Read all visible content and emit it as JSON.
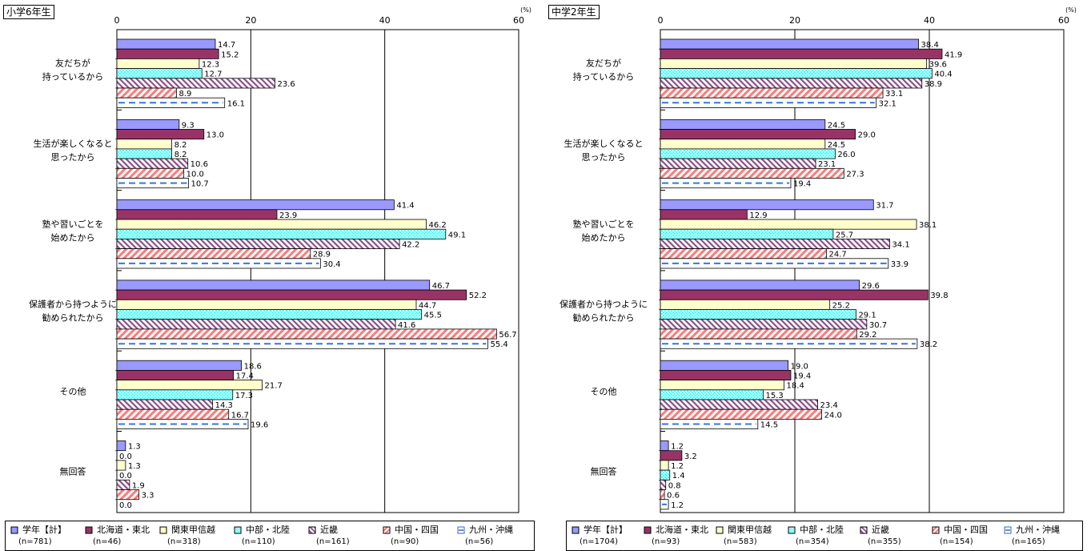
{
  "panels": [
    {
      "title": "小学6年生",
      "legend": [
        {
          "label": "学年【計】",
          "n": "(n=781)"
        },
        {
          "label": "北海道・東北",
          "n": "(n=46)"
        },
        {
          "label": "関東甲信越",
          "n": "(n=318)"
        },
        {
          "label": "中部・北陸",
          "n": "(n=110)"
        },
        {
          "label": "近畿",
          "n": "(n=161)"
        },
        {
          "label": "中国・四国",
          "n": "(n=90)"
        },
        {
          "label": "九州・沖縄",
          "n": "(n=56)"
        }
      ]
    },
    {
      "title": "中学2年生",
      "legend": [
        {
          "label": "学年【計】",
          "n": "(n=1704)"
        },
        {
          "label": "北海道・東北",
          "n": "(n=93)"
        },
        {
          "label": "関東甲信越",
          "n": "(n=583)"
        },
        {
          "label": "中部・北陸",
          "n": "(n=354)"
        },
        {
          "label": "近畿",
          "n": "(n=355)"
        },
        {
          "label": "中国・四国",
          "n": "(n=154)"
        },
        {
          "label": "九州・沖縄",
          "n": "(n=165)"
        }
      ]
    }
  ],
  "series_styles": [
    {
      "fill": "#9999ff",
      "pattern": "solid"
    },
    {
      "fill": "#993366",
      "pattern": "solid"
    },
    {
      "fill": "#ffffcc",
      "pattern": "solid"
    },
    {
      "fill": "#33ffff",
      "pattern": "cross"
    },
    {
      "fill": "#ffffff",
      "pattern": "diag-purple"
    },
    {
      "fill": "#ffffff",
      "pattern": "diag-red"
    },
    {
      "fill": "#ffffff",
      "pattern": "dash-blue"
    }
  ],
  "chart_data": [
    {
      "type": "bar",
      "orientation": "horizontal",
      "title": "小学6年生",
      "unit": "(%)",
      "xlim": [
        0,
        60
      ],
      "xticks": [
        0,
        20,
        40,
        60
      ],
      "categories": [
        [
          "友だちが",
          "持っているから"
        ],
        [
          "生活が楽しくなると",
          "思ったから"
        ],
        [
          "塾や習いごとを",
          "始めたから"
        ],
        [
          "保護者から持つように",
          "勧められたから"
        ],
        [
          "その他"
        ],
        [
          "無回答"
        ]
      ],
      "series": [
        {
          "name": "学年【計】",
          "values": [
            14.7,
            9.3,
            41.4,
            46.7,
            18.6,
            1.3
          ]
        },
        {
          "name": "北海道・東北",
          "values": [
            15.2,
            13.0,
            23.9,
            52.2,
            17.4,
            0.0
          ]
        },
        {
          "name": "関東甲信越",
          "values": [
            12.3,
            8.2,
            46.2,
            44.7,
            21.7,
            1.3
          ]
        },
        {
          "name": "中部・北陸",
          "values": [
            12.7,
            8.2,
            49.1,
            45.5,
            17.3,
            0.0
          ]
        },
        {
          "name": "近畿",
          "values": [
            23.6,
            10.6,
            42.2,
            41.6,
            14.3,
            1.9
          ]
        },
        {
          "name": "中国・四国",
          "values": [
            8.9,
            10.0,
            28.9,
            56.7,
            16.7,
            3.3
          ]
        },
        {
          "name": "九州・沖縄",
          "values": [
            16.1,
            10.7,
            30.4,
            55.4,
            19.6,
            0.0
          ]
        }
      ],
      "grid": true
    },
    {
      "type": "bar",
      "orientation": "horizontal",
      "title": "中学2年生",
      "unit": "(%)",
      "xlim": [
        0,
        60
      ],
      "xticks": [
        0,
        20,
        40,
        60
      ],
      "categories": [
        [
          "友だちが",
          "持っているから"
        ],
        [
          "生活が楽しくなると",
          "思ったから"
        ],
        [
          "塾や習いごとを",
          "始めたから"
        ],
        [
          "保護者から持つように",
          "勧められたから"
        ],
        [
          "その他"
        ],
        [
          "無回答"
        ]
      ],
      "series": [
        {
          "name": "学年【計】",
          "values": [
            38.4,
            24.5,
            31.7,
            29.6,
            19.0,
            1.2
          ]
        },
        {
          "name": "北海道・東北",
          "values": [
            41.9,
            29.0,
            12.9,
            39.8,
            19.4,
            3.2
          ]
        },
        {
          "name": "関東甲信越",
          "values": [
            39.6,
            24.5,
            38.1,
            25.2,
            18.4,
            1.2
          ]
        },
        {
          "name": "中部・北陸",
          "values": [
            40.4,
            26.0,
            25.7,
            29.1,
            15.3,
            1.4
          ]
        },
        {
          "name": "近畿",
          "values": [
            38.9,
            23.1,
            34.1,
            30.7,
            23.4,
            0.8
          ]
        },
        {
          "name": "中国・四国",
          "values": [
            33.1,
            27.3,
            24.7,
            29.2,
            24.0,
            0.6
          ]
        },
        {
          "name": "九州・沖縄",
          "values": [
            32.1,
            19.4,
            33.9,
            38.2,
            14.5,
            1.2
          ]
        }
      ],
      "grid": true
    }
  ]
}
